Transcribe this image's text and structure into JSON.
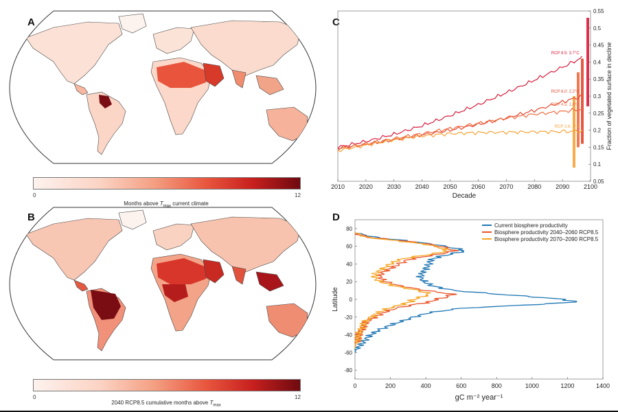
{
  "panels": {
    "A": {
      "letter": "A",
      "colorbar": {
        "min": "0",
        "max": "12",
        "label_pre": "Months above ",
        "label_var": "T",
        "label_sub": "max",
        "label_post": " current climate"
      }
    },
    "B": {
      "letter": "B",
      "colorbar": {
        "min": "0",
        "max": "12",
        "label_pre": "2040 RCP8.5 cumulative months above ",
        "label_var": "T",
        "label_sub": "max",
        "label_post": ""
      }
    },
    "C": {
      "letter": "C"
    },
    "D": {
      "letter": "D"
    }
  },
  "colors": {
    "rcp85": "#d81b3a",
    "rcp60": "#e4462e",
    "rcp45": "#ee6a3e",
    "rcp26": "#f7a235",
    "current": "#1f77b4",
    "bio2040": "#e8552a",
    "bio2070": "#f5a623",
    "map_ocean": "#ffffff",
    "map_land_base": "#fdf0ea"
  },
  "chart_data": [
    {
      "type": "line",
      "panel": "C",
      "xlabel": "Decade",
      "ylabel": "Fraction of vegetated surface in decline",
      "xlim": [
        2010,
        2100
      ],
      "ylim": [
        0.05,
        0.55
      ],
      "x_ticks": [
        "2010",
        "2020",
        "2030",
        "2040",
        "2050",
        "2060",
        "2070",
        "2080",
        "2090",
        "2100"
      ],
      "y_ticks": [
        "0.05",
        "0.1",
        "0.15",
        "0.2",
        "0.25",
        "0.3",
        "0.35",
        "0.4",
        "0.45",
        "0.5",
        "0.55"
      ],
      "y_axis_position": "right",
      "grid": false,
      "series": [
        {
          "name": "RCP 8.5: 3.7°C",
          "color_key": "rcp85",
          "x": [
            2010,
            2020,
            2030,
            2040,
            2050,
            2060,
            2070,
            2080,
            2090,
            2097
          ],
          "y": [
            0.15,
            0.167,
            0.188,
            0.213,
            0.243,
            0.275,
            0.31,
            0.347,
            0.385,
            0.413
          ],
          "range": [
            0.27,
            0.53
          ]
        },
        {
          "name": "RCP 6.0: 2.2°C",
          "color_key": "rcp60",
          "x": [
            2010,
            2020,
            2030,
            2040,
            2050,
            2060,
            2070,
            2080,
            2090,
            2097
          ],
          "y": [
            0.147,
            0.158,
            0.172,
            0.186,
            0.2,
            0.217,
            0.236,
            0.258,
            0.283,
            0.3
          ],
          "range": [
            0.16,
            0.41
          ]
        },
        {
          "name": "RCP 4.5: 1.8°C",
          "color_key": "rcp45",
          "x": [
            2010,
            2020,
            2030,
            2040,
            2050,
            2060,
            2070,
            2080,
            2090,
            2097
          ],
          "y": [
            0.145,
            0.16,
            0.175,
            0.19,
            0.205,
            0.22,
            0.235,
            0.247,
            0.255,
            0.262
          ],
          "range": [
            0.15,
            0.37
          ]
        },
        {
          "name": "RCP 2.6: 1°C",
          "color_key": "rcp26",
          "x": [
            2010,
            2020,
            2030,
            2040,
            2050,
            2060,
            2070,
            2080,
            2090,
            2097
          ],
          "y": [
            0.14,
            0.156,
            0.172,
            0.183,
            0.19,
            0.193,
            0.194,
            0.195,
            0.196,
            0.197
          ],
          "range": [
            0.09,
            0.3
          ]
        }
      ]
    },
    {
      "type": "line",
      "panel": "D",
      "xlabel": "gC m⁻² year⁻¹",
      "ylabel": "Latitude",
      "xlim": [
        0,
        1400
      ],
      "ylim": [
        -90,
        90
      ],
      "x_ticks": [
        "0",
        "200",
        "400",
        "600",
        "800",
        "1000",
        "1200",
        "1400"
      ],
      "y_ticks": [
        "80",
        "60",
        "40",
        "20",
        "0",
        "-20",
        "-40",
        "-60",
        "-80"
      ],
      "legend_position": "top-right",
      "grid": false,
      "series": [
        {
          "name": "Current biosphere productivity",
          "color_key": "current",
          "latitude": [
            75,
            70,
            66,
            62,
            58,
            55,
            52,
            48,
            45,
            40,
            35,
            30,
            25,
            20,
            15,
            10,
            6,
            3,
            0,
            -3,
            -6,
            -10,
            -15,
            -20,
            -25,
            -30,
            -35,
            -40,
            -45,
            -50,
            -55,
            -60
          ],
          "productivity": [
            0,
            120,
            300,
            450,
            560,
            620,
            560,
            470,
            430,
            420,
            400,
            380,
            370,
            390,
            440,
            560,
            800,
            1000,
            1180,
            1250,
            1000,
            600,
            420,
            330,
            260,
            190,
            130,
            90,
            60,
            40,
            10,
            0
          ]
        },
        {
          "name": "Biosphere productivity 2040–2060 RCP8.5",
          "color_key": "bio2040",
          "latitude": [
            75,
            70,
            66,
            62,
            58,
            55,
            52,
            48,
            45,
            40,
            35,
            30,
            25,
            20,
            15,
            10,
            6,
            3,
            0,
            -3,
            -6,
            -10,
            -15,
            -20,
            -25,
            -30,
            -35,
            -40,
            -45,
            -50,
            -55
          ],
          "productivity": [
            0,
            80,
            280,
            430,
            520,
            560,
            500,
            380,
            300,
            250,
            200,
            150,
            140,
            170,
            260,
            400,
            550,
            520,
            460,
            420,
            330,
            230,
            160,
            110,
            70,
            50,
            35,
            25,
            15,
            5,
            0
          ]
        },
        {
          "name": "Biosphere productivity 2070–2090 RCP8.5",
          "color_key": "bio2070",
          "latitude": [
            75,
            70,
            66,
            62,
            58,
            55,
            52,
            48,
            45,
            40,
            35,
            30,
            25,
            20,
            15,
            10,
            6,
            3,
            0,
            -3,
            -6,
            -10,
            -15,
            -20,
            -25,
            -30,
            -35,
            -40,
            -45,
            -50,
            -55
          ],
          "productivity": [
            0,
            70,
            250,
            410,
            490,
            520,
            460,
            330,
            250,
            200,
            160,
            120,
            110,
            140,
            230,
            360,
            420,
            380,
            330,
            310,
            260,
            190,
            130,
            90,
            60,
            40,
            30,
            20,
            12,
            4,
            0
          ]
        }
      ]
    }
  ]
}
